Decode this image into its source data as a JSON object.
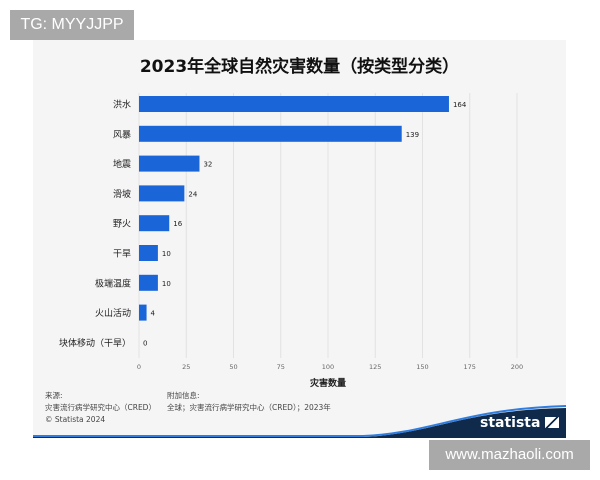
{
  "watermarks": {
    "top_left": "TG: MYYJJPP",
    "bottom_right": "www.mazhaoli.com"
  },
  "chart_data": {
    "type": "bar",
    "orientation": "horizontal",
    "title": "2023年全球自然灾害数量（按类型分类）",
    "categories": [
      "洪水",
      "风暴",
      "地震",
      "滑坡",
      "野火",
      "干旱",
      "极端温度",
      "火山活动",
      "块体移动（干旱）"
    ],
    "values": [
      164,
      139,
      32,
      24,
      16,
      10,
      10,
      4,
      0
    ],
    "xlabel": "灾害数量",
    "ylabel": "",
    "xlim": [
      0,
      200
    ],
    "xticks": [
      0,
      25,
      50,
      75,
      100,
      125,
      150,
      175,
      200
    ],
    "grid": true,
    "bar_color": "#1a66d9"
  },
  "footer": {
    "source_label": "来源:",
    "source": "灾害流行病学研究中心（CRED）",
    "copyright": "© Statista 2024",
    "info_label": "附加信息:",
    "info": "全球；灾害流行病学研究中心（CRED）；2023年",
    "brand": "statista"
  }
}
